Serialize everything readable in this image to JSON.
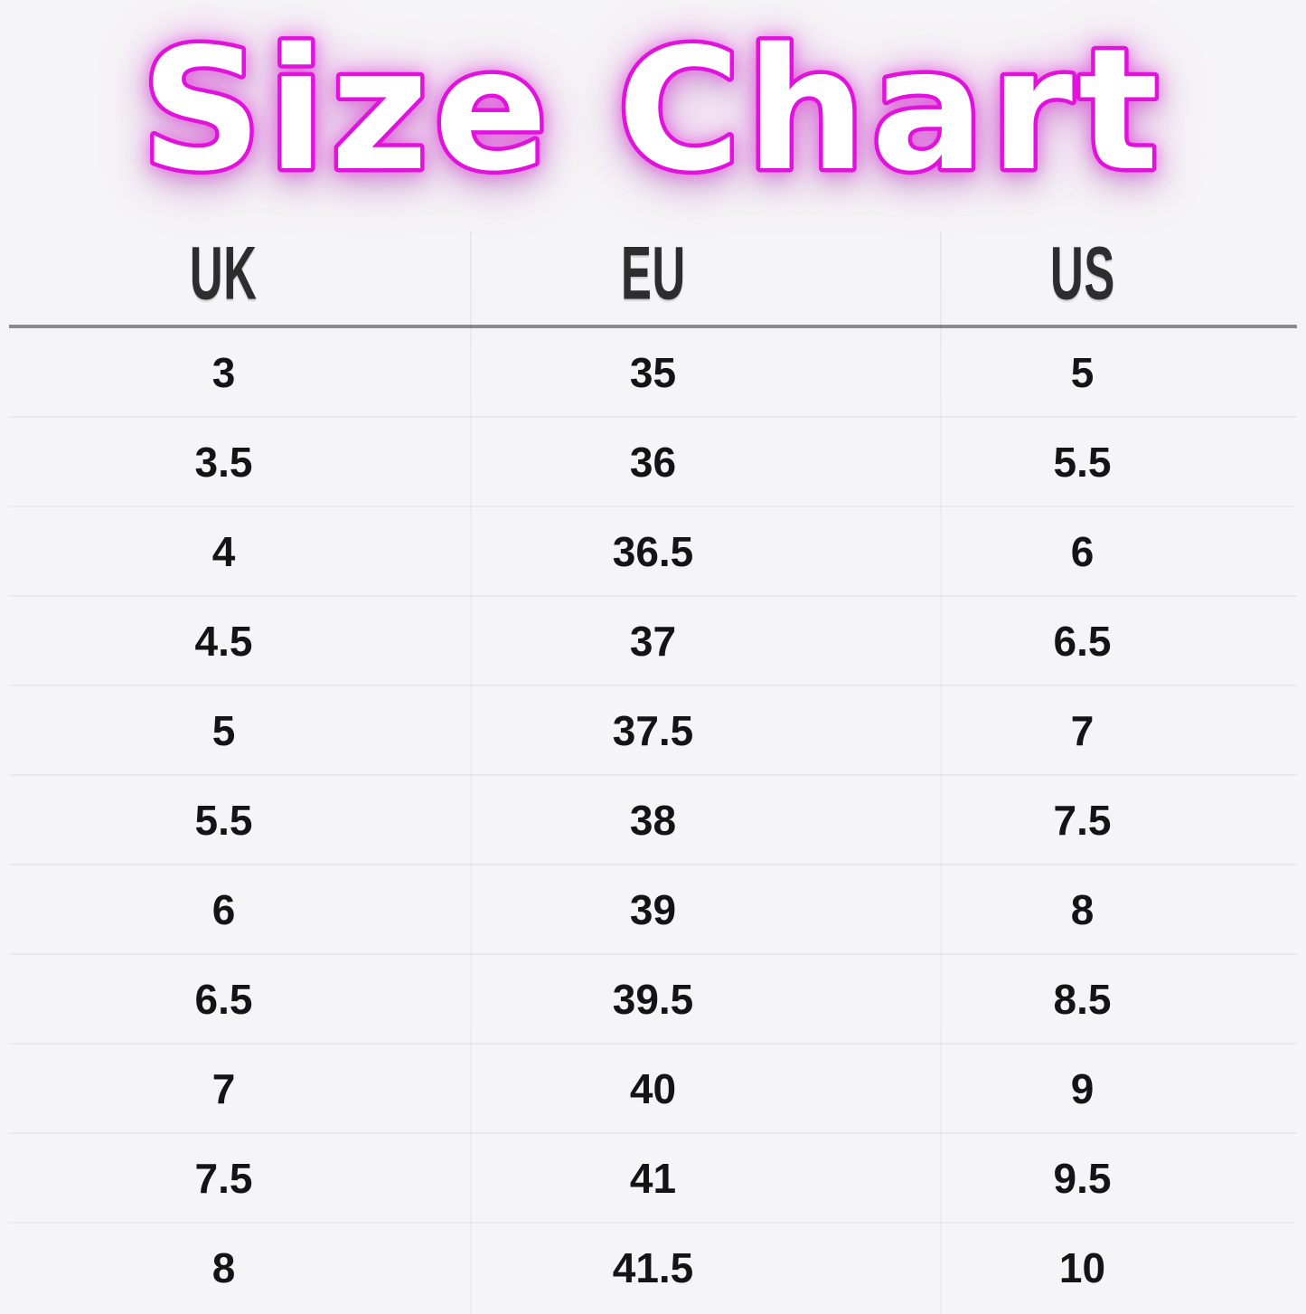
{
  "title": "Size Chart",
  "colors": {
    "background": "#f5f4f6",
    "title_fill": "#ffffff",
    "title_stroke": "#e112dc",
    "title_glow": "#ef5ae6",
    "header_text": "#2e2d2e",
    "cell_text": "#141414",
    "header_rule": "#8b8b8b"
  },
  "chart_data": {
    "type": "table",
    "title": "Size Chart",
    "columns": [
      "UK",
      "EU",
      "US"
    ],
    "rows": [
      [
        "3",
        "35",
        "5"
      ],
      [
        "3.5",
        "36",
        "5.5"
      ],
      [
        "4",
        "36.5",
        "6"
      ],
      [
        "4.5",
        "37",
        "6.5"
      ],
      [
        "5",
        "37.5",
        "7"
      ],
      [
        "5.5",
        "38",
        "7.5"
      ],
      [
        "6",
        "39",
        "8"
      ],
      [
        "6.5",
        "39.5",
        "8.5"
      ],
      [
        "7",
        "40",
        "9"
      ],
      [
        "7.5",
        "41",
        "9.5"
      ],
      [
        "8",
        "41.5",
        "10"
      ]
    ]
  }
}
